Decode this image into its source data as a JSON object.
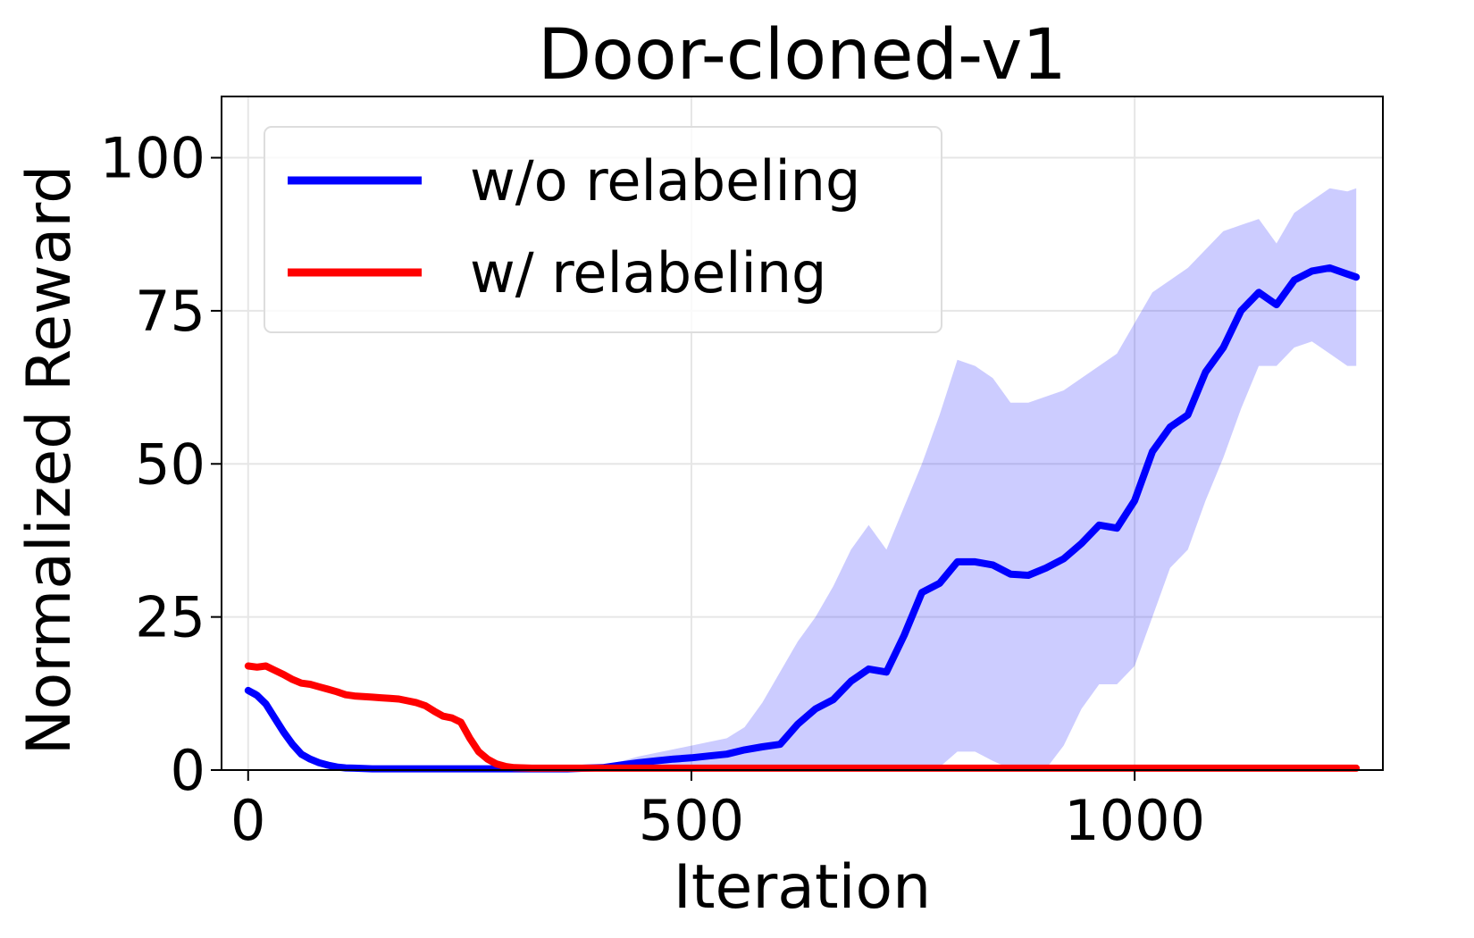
{
  "chart_data": {
    "type": "line",
    "title": "Door-cloned-v1",
    "xlabel": "Iteration",
    "ylabel": "Normalized Reward",
    "xlim": [
      -30,
      1280
    ],
    "ylim": [
      0,
      110
    ],
    "xticks": [
      0,
      500,
      1000
    ],
    "yticks": [
      0,
      25,
      50,
      75,
      100
    ],
    "grid": true,
    "legend_position": "top-left",
    "x": [
      0,
      10,
      20,
      30,
      40,
      50,
      60,
      70,
      80,
      90,
      100,
      110,
      120,
      130,
      140,
      150,
      160,
      170,
      180,
      190,
      200,
      210,
      220,
      230,
      240,
      250,
      260,
      270,
      280,
      290,
      300,
      320,
      340,
      360,
      380,
      400,
      420,
      440,
      460,
      480,
      500,
      520,
      540,
      560,
      580,
      600,
      620,
      640,
      660,
      680,
      700,
      720,
      740,
      760,
      780,
      800,
      820,
      840,
      860,
      880,
      900,
      920,
      940,
      960,
      980,
      1000,
      1020,
      1040,
      1060,
      1080,
      1100,
      1120,
      1140,
      1160,
      1180,
      1200,
      1220,
      1240,
      1250
    ],
    "series": [
      {
        "name": "w/o relabeling",
        "color": "#0000ff",
        "values": [
          13,
          12.2,
          10.8,
          8.5,
          6.2,
          4.2,
          2.6,
          1.8,
          1.2,
          0.8,
          0.5,
          0.35,
          0.3,
          0.25,
          0.2,
          0.2,
          0.2,
          0.2,
          0.2,
          0.2,
          0.2,
          0.2,
          0.2,
          0.2,
          0.2,
          0.2,
          0.2,
          0.2,
          0.2,
          0.2,
          0.2,
          0.2,
          0.2,
          0.2,
          0.3,
          0.4,
          0.8,
          1.2,
          1.5,
          1.8,
          2.0,
          2.3,
          2.6,
          3.3,
          3.8,
          4.2,
          7.5,
          10.0,
          11.5,
          14.5,
          16.5,
          16.0,
          22.0,
          29.0,
          30.5,
          34.0,
          34.0,
          33.5,
          32.0,
          31.8,
          33.0,
          34.5,
          37.0,
          40.0,
          39.5,
          44.0,
          52.0,
          56.0,
          58.0,
          65.0,
          69.0,
          75.0,
          78.0,
          76.0,
          80.0,
          81.5,
          82.0,
          81.0,
          80.5
        ],
        "band_upper": [
          13.5,
          13,
          11.5,
          9.5,
          7,
          5,
          3.2,
          2.2,
          1.5,
          1.0,
          0.7,
          0.5,
          0.4,
          0.3,
          0.3,
          0.3,
          0.3,
          0.3,
          0.3,
          0.3,
          0.3,
          0.3,
          0.3,
          0.3,
          0.3,
          0.3,
          0.3,
          0.3,
          0.3,
          0.3,
          0.3,
          0.3,
          0.3,
          0.4,
          0.6,
          0.8,
          1.4,
          2.2,
          2.8,
          3.4,
          4.0,
          4.6,
          5.2,
          7.0,
          11.0,
          16.0,
          21.0,
          25.0,
          30.0,
          36.0,
          40.0,
          36.0,
          43.0,
          50.0,
          58.0,
          67.0,
          66.0,
          64.0,
          60.0,
          60.0,
          61.0,
          62.0,
          64.0,
          66.0,
          68.0,
          73.0,
          78.0,
          80.0,
          82.0,
          85.0,
          88.0,
          89.0,
          90.0,
          86.0,
          91.0,
          93.0,
          95.0,
          94.5,
          95.0
        ],
        "band_lower": [
          12.5,
          11.5,
          10,
          7.5,
          5.5,
          3.5,
          2.0,
          1.4,
          0.9,
          0.6,
          0.3,
          0.2,
          0.2,
          0.2,
          0.1,
          0.1,
          0.1,
          0.1,
          0.1,
          0.1,
          0.1,
          0.1,
          0.1,
          0.1,
          0.1,
          0.1,
          0.1,
          0.1,
          0.1,
          0.1,
          0.1,
          0.1,
          0.1,
          0.1,
          0.1,
          0.1,
          0.2,
          0.3,
          0.3,
          0.4,
          0.3,
          0.3,
          0.3,
          0.2,
          0.2,
          0.2,
          0.2,
          0.2,
          0.2,
          0.2,
          0.2,
          0.2,
          0.2,
          0.2,
          0.5,
          3.0,
          3.0,
          1.5,
          0.2,
          0.2,
          0.2,
          4.0,
          10.0,
          14.0,
          14.0,
          17.0,
          25.0,
          33.0,
          36.0,
          44.0,
          51.0,
          59.0,
          66.0,
          66.0,
          69.0,
          70.0,
          68.0,
          66.0,
          66.0
        ]
      },
      {
        "name": "w/ relabeling",
        "color": "#ff0000",
        "values": [
          17,
          16.8,
          17.0,
          16.3,
          15.6,
          14.8,
          14.2,
          14.0,
          13.6,
          13.2,
          12.8,
          12.3,
          12.1,
          12.0,
          11.9,
          11.8,
          11.7,
          11.6,
          11.3,
          11.0,
          10.5,
          9.6,
          8.8,
          8.5,
          7.8,
          5.2,
          3.0,
          1.8,
          1.0,
          0.6,
          0.4,
          0.3,
          0.3,
          0.3,
          0.3,
          0.3,
          0.3,
          0.3,
          0.3,
          0.3,
          0.3,
          0.3,
          0.3,
          0.3,
          0.3,
          0.3,
          0.3,
          0.3,
          0.3,
          0.3,
          0.3,
          0.3,
          0.3,
          0.3,
          0.3,
          0.3,
          0.3,
          0.3,
          0.3,
          0.3,
          0.3,
          0.3,
          0.3,
          0.3,
          0.3,
          0.3,
          0.3,
          0.3,
          0.3,
          0.3,
          0.3,
          0.3,
          0.3,
          0.3,
          0.3,
          0.3,
          0.3,
          0.3,
          0.3
        ]
      }
    ]
  }
}
